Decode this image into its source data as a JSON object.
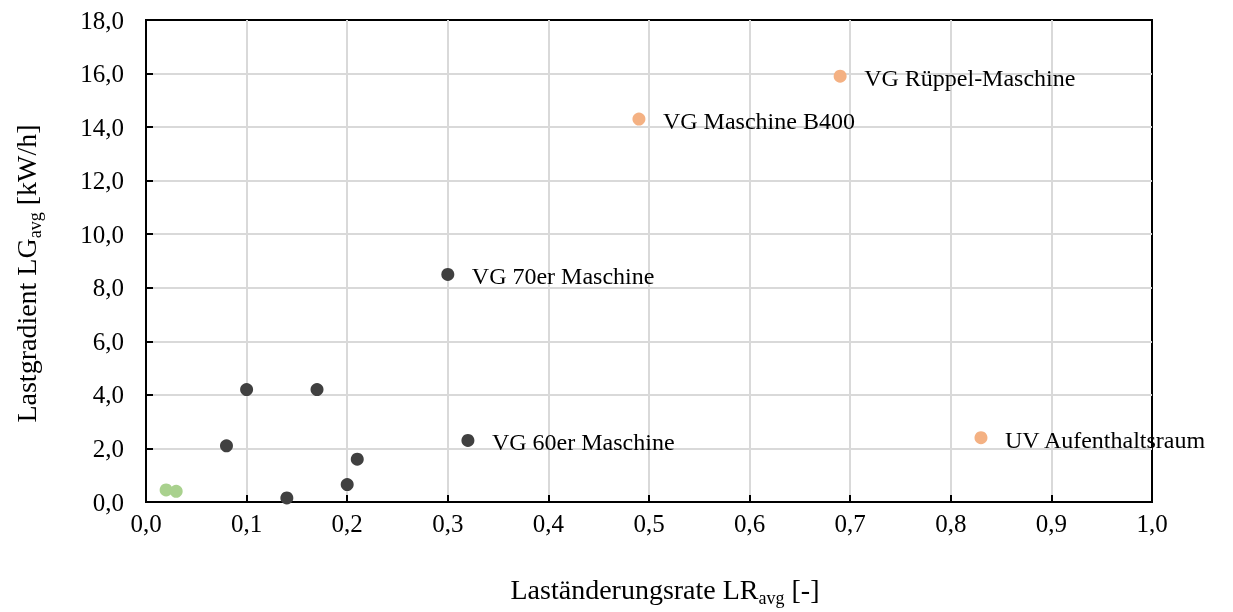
{
  "chart_data": {
    "type": "scatter",
    "xlabel": "Laständerungsrate LR$_{avg}$ [-]",
    "ylabel": "Lastgradient LG$_{avg}$ [kW/h]",
    "series": [
      {
        "color": "#404040",
        "x": [
          0.08,
          0.1,
          0.14,
          0.17,
          0.2,
          0.21,
          0.3,
          0.32
        ],
        "values": [
          2.1,
          4.2,
          0.15,
          4.2,
          0.65,
          1.6,
          8.5,
          2.3
        ]
      },
      {
        "color": "#f4b183",
        "x": [
          0.49,
          0.69,
          0.83
        ],
        "values": [
          14.3,
          15.9,
          2.4
        ]
      },
      {
        "color": "#a9d18e",
        "x": [
          0.02,
          0.03
        ],
        "values": [
          0.45,
          0.4
        ]
      }
    ],
    "annotations": [
      {
        "text": "VG Rüppel-Maschine",
        "x": 0.69,
        "y": 15.9
      },
      {
        "text": "VG Maschine B400",
        "x": 0.49,
        "y": 14.3
      },
      {
        "text": "VG 70er Maschine",
        "x": 0.3,
        "y": 8.5
      },
      {
        "text": "VG 60er Maschine",
        "x": 0.32,
        "y": 2.3
      },
      {
        "text": "UV Aufenthaltsraum",
        "x": 0.83,
        "y": 2.4
      }
    ],
    "xlim": [
      0,
      1
    ],
    "xticks": [
      {
        "value": 0,
        "label": "0,0"
      },
      {
        "value": 0.1,
        "label": "0,1"
      },
      {
        "value": 0.2,
        "label": "0,2"
      },
      {
        "value": 0.3,
        "label": "0,3"
      },
      {
        "value": 0.4,
        "label": "0,4"
      },
      {
        "value": 0.5,
        "label": "0,5"
      },
      {
        "value": 0.6,
        "label": "0,6"
      },
      {
        "value": 0.7,
        "label": "0,7"
      },
      {
        "value": 0.8,
        "label": "0,8"
      },
      {
        "value": 0.9,
        "label": "0,9"
      },
      {
        "value": 1,
        "label": "1,0"
      }
    ],
    "ylim": [
      0,
      18
    ],
    "yticks": [
      {
        "value": 0,
        "label": "0,0"
      },
      {
        "value": 2,
        "label": "2,0"
      },
      {
        "value": 4,
        "label": "4,0"
      },
      {
        "value": 6,
        "label": "6,0"
      },
      {
        "value": 8,
        "label": "8,0"
      },
      {
        "value": 10,
        "label": "10,0"
      },
      {
        "value": 12,
        "label": "12,0"
      },
      {
        "value": 14,
        "label": "14,0"
      },
      {
        "value": 16,
        "label": "16,0"
      },
      {
        "value": 18,
        "label": "18,0"
      }
    ],
    "grid": true,
    "marker": "circle"
  }
}
